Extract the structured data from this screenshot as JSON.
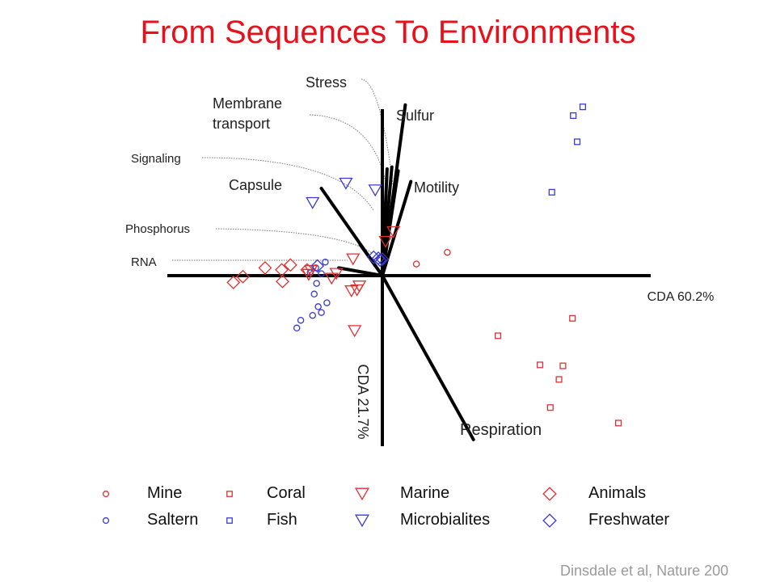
{
  "title": "From Sequences To Environments",
  "citation": "Dinsdale et al, Nature 200",
  "chart_data": {
    "type": "scatter",
    "x_axis_label": "CDA 60.2%",
    "y_axis_label": "CDA 21.7%",
    "colors": {
      "red": "#e03030",
      "blue": "#3a3ad0"
    },
    "vectors": [
      {
        "name": "Stress",
        "dx": 0.12,
        "dy": 1.12
      },
      {
        "name": "Membrane transport",
        "dx": 0.06,
        "dy": 1.1
      },
      {
        "name": "Sulfur",
        "dx": 0.29,
        "dy": 1.76
      },
      {
        "name": "Motility",
        "dx": 0.36,
        "dy": 0.97
      },
      {
        "name": "Signaling",
        "dx": 0.2,
        "dy": 1.08
      },
      {
        "name": "Capsule",
        "dx": -0.77,
        "dy": 0.9
      },
      {
        "name": "Phosphorus",
        "dx": -0.28,
        "dy": 0.32
      },
      {
        "name": "RNA",
        "dx": -0.55,
        "dy": 0.08
      },
      {
        "name": "Respiration",
        "dx": 1.15,
        "dy": -1.69
      }
    ],
    "series": [
      {
        "name": "Mine",
        "marker": "circle",
        "color": "red",
        "points": [
          [
            0.43,
            0.12
          ],
          [
            0.82,
            0.24
          ]
        ]
      },
      {
        "name": "Saltern",
        "marker": "circle",
        "color": "blue",
        "points": [
          [
            -0.72,
            0.14
          ],
          [
            -0.84,
            0.08
          ],
          [
            -0.77,
            0.02
          ],
          [
            -0.91,
            0.03
          ],
          [
            -0.83,
            -0.08
          ],
          [
            -0.86,
            -0.19
          ],
          [
            -0.7,
            -0.28
          ],
          [
            -0.81,
            -0.32
          ],
          [
            -0.88,
            -0.41
          ],
          [
            -0.77,
            -0.38
          ],
          [
            -1.03,
            -0.46
          ],
          [
            -1.08,
            -0.54
          ]
        ]
      },
      {
        "name": "Coral",
        "marker": "square",
        "color": "red",
        "points": [
          [
            2.4,
            -0.44
          ],
          [
            1.46,
            -0.62
          ],
          [
            1.99,
            -0.92
          ],
          [
            2.28,
            -0.93
          ],
          [
            2.23,
            -1.07
          ],
          [
            2.12,
            -1.36
          ],
          [
            2.98,
            -1.52
          ]
        ]
      },
      {
        "name": "Fish",
        "marker": "square",
        "color": "blue",
        "points": [
          [
            2.53,
            1.74
          ],
          [
            2.41,
            1.65
          ],
          [
            2.46,
            1.38
          ],
          [
            2.14,
            0.86
          ]
        ]
      },
      {
        "name": "Marine",
        "marker": "triangle",
        "color": "red",
        "points": [
          [
            0.14,
            0.45
          ],
          [
            0.04,
            0.35
          ],
          [
            -0.37,
            0.17
          ],
          [
            -0.58,
            0.02
          ],
          [
            -0.64,
            -0.03
          ],
          [
            -0.9,
            0.05
          ],
          [
            -0.93,
            0.01
          ],
          [
            -0.29,
            -0.11
          ],
          [
            -0.32,
            -0.15
          ],
          [
            -0.39,
            -0.16
          ],
          [
            -0.35,
            -0.57
          ]
        ]
      },
      {
        "name": "Microbialites",
        "marker": "triangle",
        "color": "blue",
        "points": [
          [
            -0.46,
            0.95
          ],
          [
            -0.09,
            0.88
          ],
          [
            -0.88,
            0.75
          ]
        ]
      },
      {
        "name": "Animals",
        "marker": "diamond",
        "color": "red",
        "points": [
          [
            -1.16,
            0.11
          ],
          [
            -0.95,
            0.06
          ],
          [
            -1.48,
            0.08
          ],
          [
            -1.27,
            0.06
          ],
          [
            -1.76,
            -0.01
          ],
          [
            -1.26,
            -0.06
          ],
          [
            -1.88,
            -0.07
          ]
        ]
      },
      {
        "name": "Freshwater",
        "marker": "diamond",
        "color": "blue",
        "points": [
          [
            -0.05,
            0.18
          ],
          [
            -0.03,
            0.16
          ],
          [
            0.0,
            0.17
          ],
          [
            -0.11,
            0.19
          ],
          [
            -0.82,
            0.1
          ]
        ]
      }
    ]
  }
}
